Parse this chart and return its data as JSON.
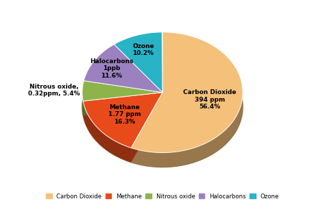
{
  "slices": [
    {
      "label": "Carbon Dioxide\n394 ppm\n56.4%",
      "pct": 56.4,
      "color": "#F5C07A"
    },
    {
      "label": "Methane\n1.77 ppm\n16.3%",
      "pct": 16.3,
      "color": "#E84A1A"
    },
    {
      "label": "Nitrous oxide,\n0.32ppm, 5.4%",
      "pct": 5.4,
      "color": "#8DB44A"
    },
    {
      "label": "Halocarbons\n1ppb\n11.6%",
      "pct": 11.6,
      "color": "#9B81C0"
    },
    {
      "label": "Ozone\n10.2%",
      "pct": 10.2,
      "color": "#29B3C7"
    }
  ],
  "legend_labels": [
    "Carbon Dioxide",
    "Methane",
    "Nitrous oxide",
    "Halocarbons",
    "Ozone"
  ],
  "legend_colors": [
    "#F5C07A",
    "#E84A1A",
    "#8DB44A",
    "#9B81C0",
    "#29B3C7"
  ],
  "background_color": "#FFFFFF",
  "shadow_color": "#8B6D45",
  "startangle": 90,
  "depth_color": "#8B6D45"
}
